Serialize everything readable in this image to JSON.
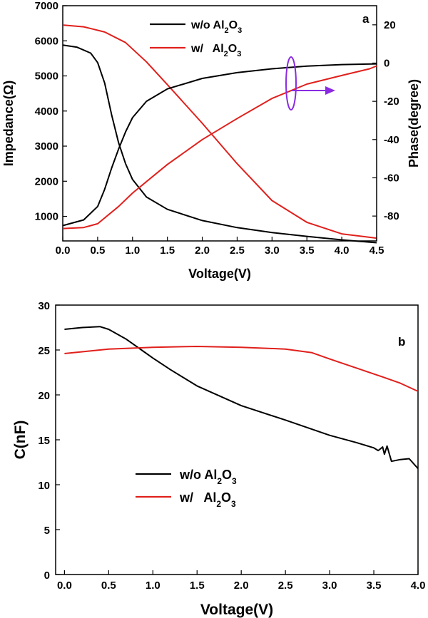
{
  "chart_data": [
    {
      "panel": "a",
      "type": "line",
      "xlabel": "Voltage(V)",
      "ylabel": "Impedance(Ω)",
      "ylabel_right": "Phase(degree)",
      "xlim": [
        0,
        4.5
      ],
      "ylim": [
        300,
        7000
      ],
      "ylim_right": [
        -93,
        30
      ],
      "x_ticks": [
        "0.0",
        "0.5",
        "1.0",
        "1.5",
        "2.0",
        "2.5",
        "3.0",
        "3.5",
        "4.0",
        "4.5"
      ],
      "y_ticks": [
        "1000",
        "2000",
        "3000",
        "4000",
        "5000",
        "6000",
        "7000"
      ],
      "y_ticks_right": [
        "20",
        "0",
        "-20",
        "-40",
        "-60",
        "-80"
      ],
      "legend_position": "top-center",
      "series": [
        {
          "name": "w/o Al2O3",
          "color": "#000000",
          "axis": "left",
          "points": [
            [
              0,
              5880
            ],
            [
              0.2,
              5820
            ],
            [
              0.4,
              5650
            ],
            [
              0.5,
              5380
            ],
            [
              0.6,
              4800
            ],
            [
              0.7,
              3900
            ],
            [
              0.8,
              3100
            ],
            [
              0.9,
              2500
            ],
            [
              1.0,
              2050
            ],
            [
              1.2,
              1550
            ],
            [
              1.5,
              1200
            ],
            [
              2.0,
              880
            ],
            [
              2.5,
              680
            ],
            [
              3.0,
              540
            ],
            [
              3.5,
              430
            ],
            [
              4.0,
              330
            ],
            [
              4.5,
              250
            ]
          ]
        },
        {
          "name": "w/ Al2O3",
          "color": "#e0201c",
          "axis": "left",
          "points": [
            [
              0,
              6450
            ],
            [
              0.3,
              6400
            ],
            [
              0.6,
              6250
            ],
            [
              0.9,
              5950
            ],
            [
              1.2,
              5400
            ],
            [
              1.5,
              4750
            ],
            [
              2.0,
              3650
            ],
            [
              2.5,
              2500
            ],
            [
              3.0,
              1450
            ],
            [
              3.5,
              830
            ],
            [
              4.0,
              500
            ],
            [
              4.5,
              380
            ]
          ]
        },
        {
          "name": "w/o Al2O3 phase",
          "color": "#000000",
          "axis": "right",
          "points": [
            [
              0,
              -85
            ],
            [
              0.3,
              -82
            ],
            [
              0.5,
              -75
            ],
            [
              0.6,
              -66
            ],
            [
              0.7,
              -55
            ],
            [
              0.8,
              -45
            ],
            [
              0.9,
              -36
            ],
            [
              1.0,
              -28.5
            ],
            [
              1.2,
              -20
            ],
            [
              1.5,
              -13.5
            ],
            [
              2.0,
              -8
            ],
            [
              2.5,
              -5
            ],
            [
              3.0,
              -3
            ],
            [
              3.5,
              -1.6
            ],
            [
              4.0,
              -0.8
            ],
            [
              4.5,
              -0.4
            ]
          ]
        },
        {
          "name": "w/ Al2O3 phase",
          "color": "#e0201c",
          "axis": "right",
          "points": [
            [
              0,
              -86.5
            ],
            [
              0.3,
              -86
            ],
            [
              0.5,
              -84
            ],
            [
              0.8,
              -75
            ],
            [
              1.0,
              -68
            ],
            [
              1.2,
              -62
            ],
            [
              1.5,
              -53
            ],
            [
              2.0,
              -40
            ],
            [
              2.5,
              -29
            ],
            [
              3.0,
              -18.5
            ],
            [
              3.5,
              -11
            ],
            [
              4.0,
              -6.5
            ],
            [
              4.4,
              -3
            ],
            [
              4.5,
              -1.5
            ]
          ]
        }
      ]
    },
    {
      "panel": "b",
      "type": "line",
      "xlabel": "Voltage(V)",
      "ylabel": "C(nF)",
      "xlim": [
        -0.1,
        4.0
      ],
      "ylim": [
        0,
        30
      ],
      "x_ticks": [
        "0.0",
        "0.5",
        "1.0",
        "1.5",
        "2.0",
        "2.5",
        "3.0",
        "3.5",
        "4.0"
      ],
      "y_ticks": [
        "0",
        "5",
        "10",
        "15",
        "20",
        "25",
        "30"
      ],
      "legend_position": "lower-left",
      "series": [
        {
          "name": "w/o Al2O3",
          "color": "#000000",
          "points": [
            [
              0,
              27.3
            ],
            [
              0.2,
              27.5
            ],
            [
              0.4,
              27.6
            ],
            [
              0.5,
              27.3
            ],
            [
              0.7,
              26.2
            ],
            [
              0.9,
              24.8
            ],
            [
              1.0,
              24.1
            ],
            [
              1.2,
              22.8
            ],
            [
              1.5,
              21.0
            ],
            [
              2.0,
              18.8
            ],
            [
              2.5,
              17.2
            ],
            [
              3.0,
              15.5
            ],
            [
              3.3,
              14.7
            ],
            [
              3.5,
              14.1
            ],
            [
              3.55,
              13.8
            ],
            [
              3.6,
              14.2
            ],
            [
              3.62,
              13.4
            ],
            [
              3.65,
              14.3
            ],
            [
              3.7,
              12.6
            ],
            [
              3.8,
              12.8
            ],
            [
              3.9,
              12.9
            ],
            [
              4.0,
              11.8
            ]
          ]
        },
        {
          "name": "w/ Al2O3",
          "color": "#e0201c",
          "points": [
            [
              0,
              24.6
            ],
            [
              0.3,
              24.9
            ],
            [
              0.5,
              25.1
            ],
            [
              1.0,
              25.3
            ],
            [
              1.5,
              25.4
            ],
            [
              2.0,
              25.3
            ],
            [
              2.5,
              25.1
            ],
            [
              2.8,
              24.7
            ],
            [
              3.0,
              24.0
            ],
            [
              3.3,
              23.0
            ],
            [
              3.6,
              22.0
            ],
            [
              3.8,
              21.3
            ],
            [
              4.0,
              20.4
            ]
          ]
        }
      ]
    }
  ],
  "labels": {
    "panel_a": "a",
    "panel_b": "b",
    "legend_a": [
      {
        "prefix": "w/o Al",
        "sub1": "2",
        "mid": "O",
        "sub2": "3"
      },
      {
        "prefix": "w/   Al",
        "sub1": "2",
        "mid": "O",
        "sub2": "3"
      }
    ],
    "legend_b": [
      {
        "prefix": "w/o Al",
        "sub1": "2",
        "mid": "O",
        "sub2": "3"
      },
      {
        "prefix": "w/   Al",
        "sub1": "2",
        "mid": "O",
        "sub2": "3"
      }
    ]
  },
  "annotation": {
    "color": "#8a2be2",
    "meaning": "ellipse with arrow pointing to right (phase) axis"
  }
}
